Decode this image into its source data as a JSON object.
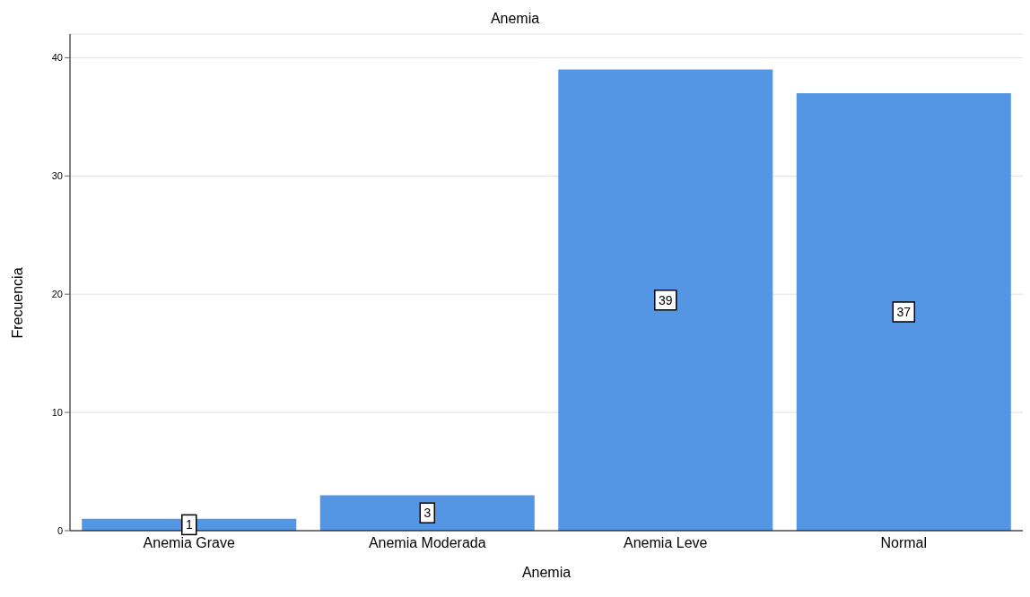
{
  "chart_data": {
    "type": "bar",
    "title": "Anemia",
    "xlabel": "Anemia",
    "ylabel": "Frecuencia",
    "categories": [
      "Anemia Grave",
      "Anemia Moderada",
      "Anemia Leve",
      "Normal"
    ],
    "values": [
      1,
      3,
      39,
      37
    ],
    "color": "#5596e4",
    "ylim": [
      0,
      42
    ],
    "yticks": [
      0,
      10,
      20,
      30,
      40
    ],
    "grid": "y",
    "data_labels": true
  }
}
